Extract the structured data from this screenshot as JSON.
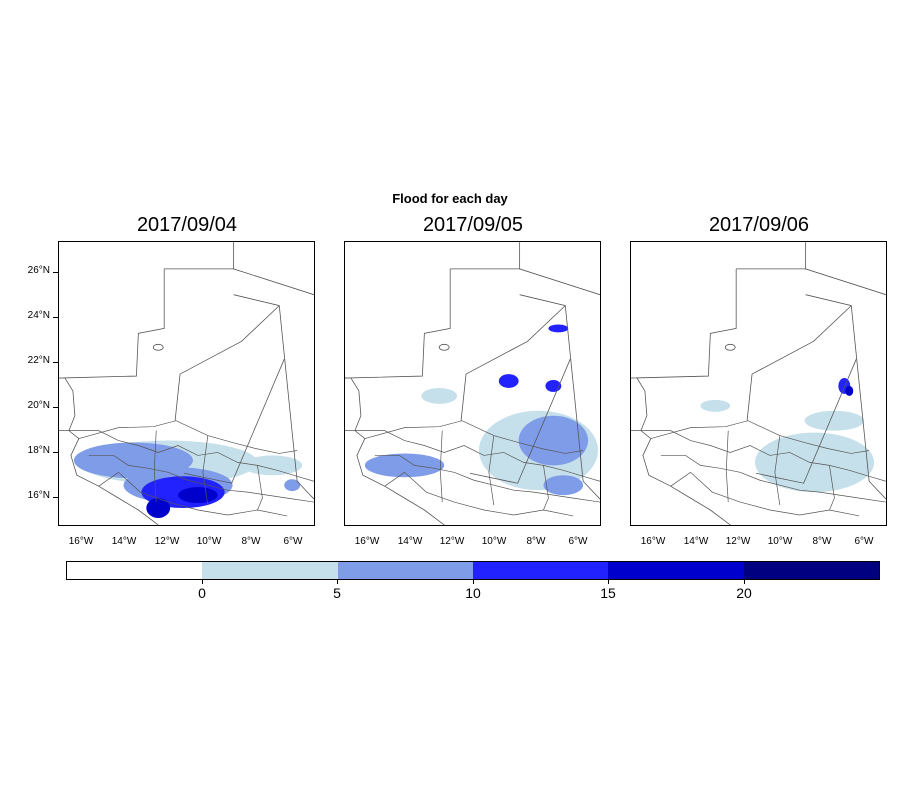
{
  "figure": {
    "title": "Flood for each day",
    "panels": [
      {
        "date": "2017/09/04"
      },
      {
        "date": "2017/09/05"
      },
      {
        "date": "2017/09/06"
      }
    ],
    "lat_labels": [
      "26°N",
      "24°N",
      "22°N",
      "20°N",
      "18°N",
      "16°N"
    ],
    "lon_labels": [
      "16°W",
      "14°W",
      "12°W",
      "10°W",
      "8°W",
      "6°W"
    ]
  },
  "legend": {
    "tick_labels": [
      "0",
      "5",
      "10",
      "15",
      "20"
    ],
    "colors": [
      "#ffffff",
      "#c6e0eb",
      "#7f9ce8",
      "#2222ff",
      "#0000cc",
      "#000080"
    ]
  },
  "colors": {
    "border": "#555555",
    "frame": "#000000"
  }
}
